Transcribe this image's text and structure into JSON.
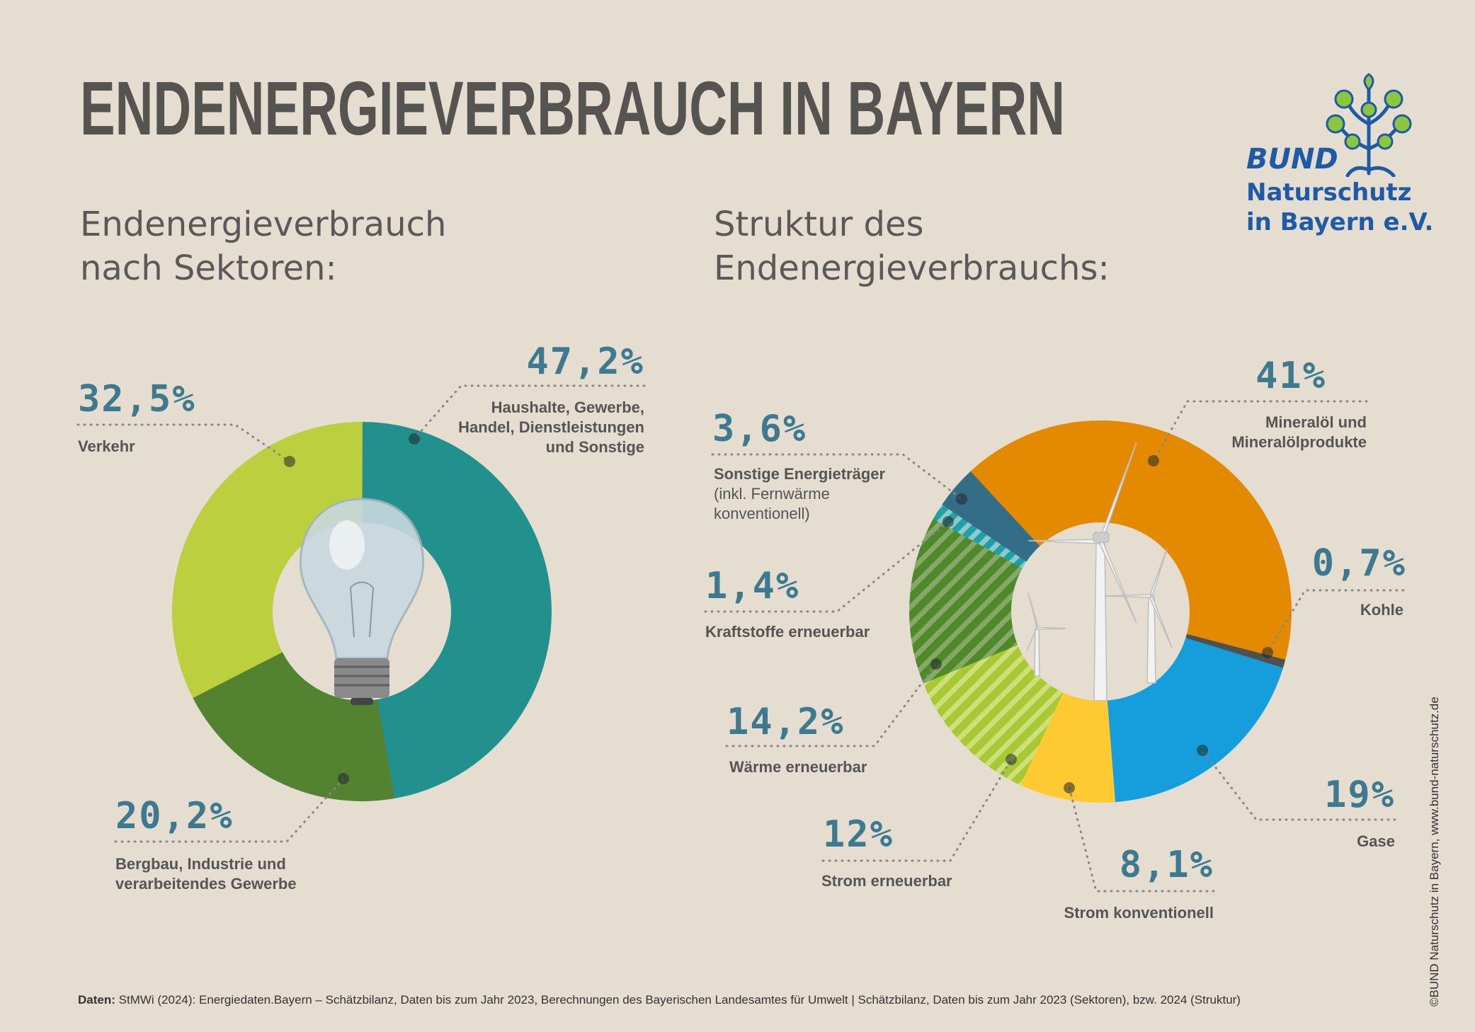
{
  "title": "ENDENERGIEVERBRAUCH IN BAYERN",
  "logo": {
    "line1": "BUND",
    "line2": "Naturschutz",
    "line3": "in Bayern e.V."
  },
  "colors": {
    "background": "#e6ddd1",
    "percent_text": "#3d7a8f",
    "logo_blue": "#1f5aa6",
    "logo_green": "#8cc63f"
  },
  "icons": {
    "left_center": "light-bulb",
    "right_center": "wind-turbines",
    "logo": "tree-icon"
  },
  "chart_data": [
    {
      "type": "pie",
      "variant": "donut",
      "title_lines": [
        "Endenergieverbrauch",
        "nach Sektoren:"
      ],
      "slices": [
        {
          "label_lines": [
            "Haushalte, Gewerbe,",
            "Handel, Dienstleistungen",
            "und Sonstige"
          ],
          "value": 47.2,
          "value_label": "47,2%",
          "color": "#22918d"
        },
        {
          "label_lines": [
            "Bergbau, Industrie und",
            "verarbeitendes Gewerbe"
          ],
          "value": 20.2,
          "value_label": "20,2%",
          "color": "#538230"
        },
        {
          "label_lines": [
            "Verkehr"
          ],
          "value": 32.5,
          "value_label": "32,5%",
          "color": "#bcd03f"
        }
      ]
    },
    {
      "type": "pie",
      "variant": "donut",
      "title_lines": [
        "Struktur des",
        "Endenergieverbrauchs:"
      ],
      "slices": [
        {
          "label_lines": [
            "Mineralöl und",
            "Mineralölprodukte"
          ],
          "value": 41,
          "value_label": "41%",
          "color": "#e48a00",
          "hatched": false
        },
        {
          "label_lines": [
            "Kohle"
          ],
          "value": 0.7,
          "value_label": "0,7%",
          "color": "#505050",
          "hatched": false
        },
        {
          "label_lines": [
            "Gase"
          ],
          "value": 19,
          "value_label": "19%",
          "color": "#169ddb",
          "hatched": false
        },
        {
          "label_lines": [
            "Strom konventionell"
          ],
          "value": 8.1,
          "value_label": "8,1%",
          "color": "#fdcb31",
          "hatched": false
        },
        {
          "label_lines": [
            "Strom erneuerbar"
          ],
          "value": 12,
          "value_label": "12%",
          "color": "#a8c934",
          "hatched": true
        },
        {
          "label_lines": [
            "Wärme erneuerbar"
          ],
          "value": 14.2,
          "value_label": "14,2%",
          "color": "#4f8a2a",
          "hatched": true
        },
        {
          "label_lines": [
            "Kraftstoffe erneuerbar"
          ],
          "value": 1.4,
          "value_label": "1,4%",
          "color": "#1f9fa8",
          "hatched": true
        },
        {
          "label_lines": [
            "Sonstige Energieträger"
          ],
          "label_note_lines": [
            "(inkl. Fernwärme",
            "konventionell)"
          ],
          "value": 3.6,
          "value_label": "3,6%",
          "color": "#336e86",
          "hatched": false
        }
      ]
    }
  ],
  "footer": {
    "source_label": "Daten:",
    "source_text": " StMWi (2024): Energiedaten.Bayern – Schätzbilanz, Daten bis zum Jahr 2023, Berechnungen des Bayerischen Landesamtes für Umwelt | Schätzbilanz, Daten bis zum Jahr 2023 (Sektoren), bzw. 2024 (Struktur)"
  },
  "copyright": "©BUND Naturschutz in Bayern, www.bund-naturschutz.de"
}
